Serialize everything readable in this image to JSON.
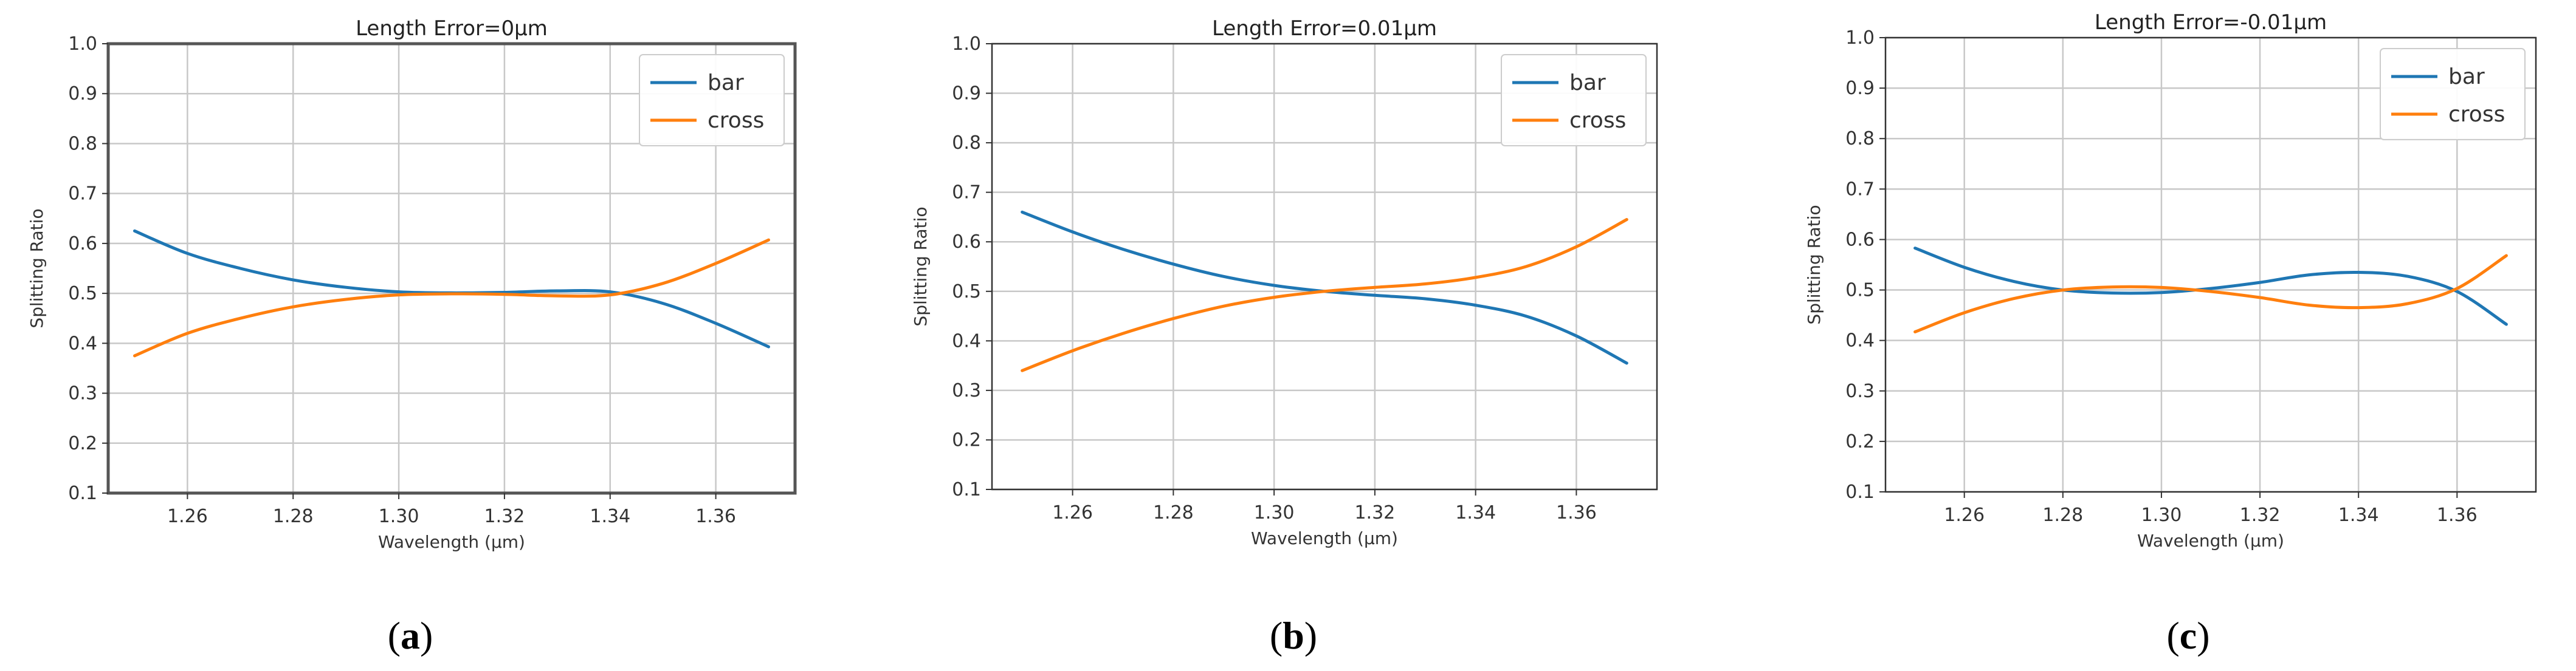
{
  "chart_data": [
    {
      "type": "line",
      "title": "Length Error=0μm",
      "xlabel": "Wavelength (μm)",
      "ylabel": "Splitting Ratio",
      "panel_label": "a",
      "xlim": [
        1.245,
        1.375
      ],
      "ylim": [
        0.1,
        1.0
      ],
      "xticks": [
        "1.26",
        "1.28",
        "1.30",
        "1.32",
        "1.34",
        "1.36"
      ],
      "yticks": [
        "0.1",
        "0.2",
        "0.3",
        "0.4",
        "0.5",
        "0.6",
        "0.7",
        "0.8",
        "0.9",
        "1.0"
      ],
      "grid": true,
      "legend_position": "top-right",
      "x": [
        1.25,
        1.26,
        1.27,
        1.28,
        1.29,
        1.3,
        1.31,
        1.32,
        1.33,
        1.34,
        1.35,
        1.36,
        1.37
      ],
      "series": [
        {
          "name": "bar",
          "color": "#1f77b4",
          "values": [
            0.625,
            0.58,
            0.55,
            0.527,
            0.512,
            0.503,
            0.501,
            0.502,
            0.505,
            0.503,
            0.48,
            0.44,
            0.393
          ]
        },
        {
          "name": "cross",
          "color": "#ff7f0e",
          "values": [
            0.375,
            0.42,
            0.45,
            0.473,
            0.488,
            0.497,
            0.499,
            0.498,
            0.495,
            0.497,
            0.52,
            0.56,
            0.607
          ]
        }
      ]
    },
    {
      "type": "line",
      "title": "Length Error=0.01μm",
      "xlabel": "Wavelength (μm)",
      "ylabel": "Splitting Ratio",
      "panel_label": "b",
      "xlim": [
        1.244,
        1.376
      ],
      "ylim": [
        0.1,
        1.0
      ],
      "xticks": [
        "1.26",
        "1.28",
        "1.30",
        "1.32",
        "1.34",
        "1.36"
      ],
      "yticks": [
        "0.1",
        "0.2",
        "0.3",
        "0.4",
        "0.5",
        "0.6",
        "0.7",
        "0.8",
        "0.9",
        "1.0"
      ],
      "grid": true,
      "legend_position": "top-right",
      "x": [
        1.25,
        1.26,
        1.27,
        1.28,
        1.29,
        1.3,
        1.31,
        1.32,
        1.33,
        1.34,
        1.35,
        1.36,
        1.37
      ],
      "series": [
        {
          "name": "bar",
          "color": "#1f77b4",
          "values": [
            0.66,
            0.62,
            0.585,
            0.555,
            0.53,
            0.512,
            0.5,
            0.492,
            0.485,
            0.472,
            0.45,
            0.41,
            0.355
          ]
        },
        {
          "name": "cross",
          "color": "#ff7f0e",
          "values": [
            0.34,
            0.38,
            0.415,
            0.445,
            0.47,
            0.488,
            0.5,
            0.508,
            0.515,
            0.528,
            0.55,
            0.59,
            0.645
          ]
        }
      ]
    },
    {
      "type": "line",
      "title": "Length Error=-0.01μm",
      "xlabel": "Wavelength (μm)",
      "ylabel": "Splitting Ratio",
      "panel_label": "c",
      "xlim": [
        1.244,
        1.376
      ],
      "ylim": [
        0.1,
        1.0
      ],
      "xticks": [
        "1.26",
        "1.28",
        "1.30",
        "1.32",
        "1.34",
        "1.36"
      ],
      "yticks": [
        "0.1",
        "0.2",
        "0.3",
        "0.4",
        "0.5",
        "0.6",
        "0.7",
        "0.8",
        "0.9",
        "1.0"
      ],
      "grid": true,
      "legend_position": "top-right",
      "x": [
        1.25,
        1.26,
        1.27,
        1.28,
        1.29,
        1.3,
        1.31,
        1.32,
        1.33,
        1.34,
        1.35,
        1.36,
        1.37
      ],
      "series": [
        {
          "name": "bar",
          "color": "#1f77b4",
          "values": [
            0.583,
            0.545,
            0.517,
            0.5,
            0.494,
            0.495,
            0.503,
            0.515,
            0.53,
            0.535,
            0.527,
            0.497,
            0.432
          ]
        },
        {
          "name": "cross",
          "color": "#ff7f0e",
          "values": [
            0.417,
            0.455,
            0.483,
            0.5,
            0.506,
            0.505,
            0.497,
            0.485,
            0.47,
            0.465,
            0.473,
            0.503,
            0.568
          ]
        }
      ]
    }
  ]
}
